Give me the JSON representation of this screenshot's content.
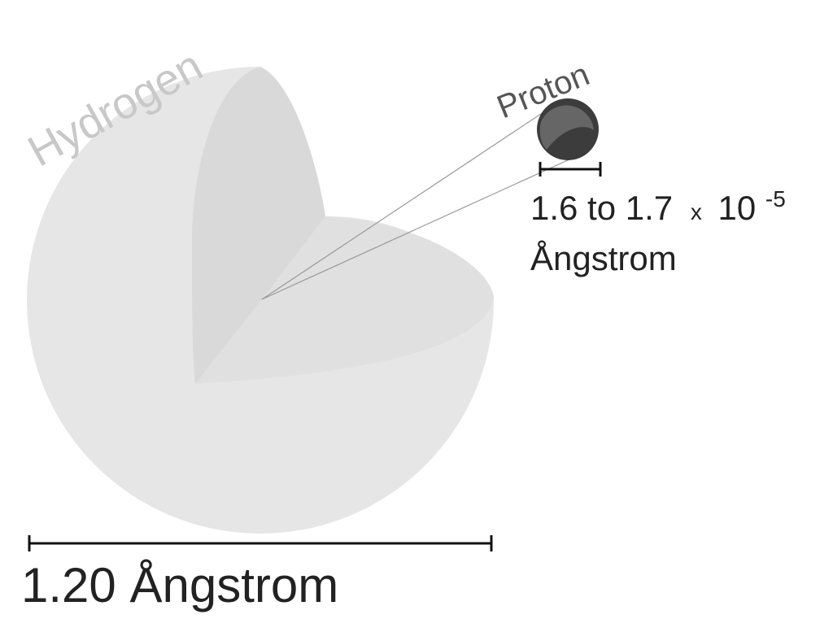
{
  "atom": {
    "name": "Hydrogen",
    "diameter_label": "1.20 Ångstrom"
  },
  "proton": {
    "name": "Proton",
    "diameter_label_main": "1.6 to 1.7",
    "diameter_label_times": "x",
    "diameter_label_base": "10",
    "diameter_label_exp": "-5",
    "diameter_label_unit": "Ångstrom"
  },
  "colors": {
    "atom_outer": "#e6e6e6",
    "atom_cut_left": "#d9d9d9",
    "atom_cut_top": "#e0e0e0",
    "hydrogen_label": "#c8c8c8",
    "proton_dark": "#3c3c3c",
    "proton_light": "#666666",
    "text": "#222222",
    "scale_bar": "#111111",
    "leader_line": "#9a9a9a"
  }
}
